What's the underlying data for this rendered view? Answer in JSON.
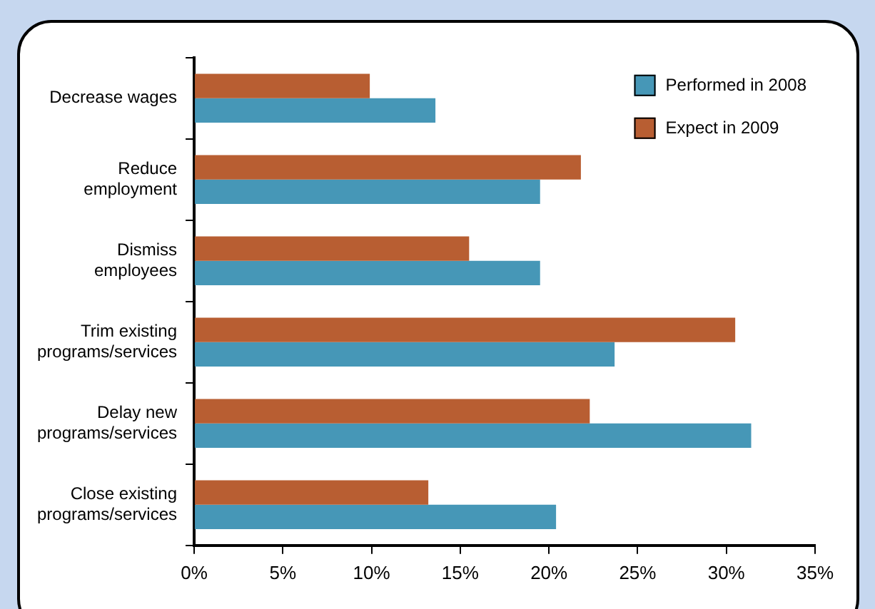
{
  "chart_data": {
    "type": "bar",
    "orientation": "horizontal",
    "categories": [
      "Decrease wages",
      "Reduce\nemployment",
      "Dismiss\nemployees",
      "Trim existing\nprograms/services",
      "Delay new\nprograms/services",
      "Close existing\nprograms/services"
    ],
    "series": [
      {
        "name": "Performed in 2008",
        "color": "#4697b7",
        "values": [
          13.6,
          19.5,
          19.5,
          23.7,
          31.4,
          20.4
        ]
      },
      {
        "name": "Expect in 2009",
        "color": "#b85e32",
        "values": [
          9.9,
          21.8,
          15.5,
          30.5,
          22.3,
          13.2
        ]
      }
    ],
    "xlim": [
      0,
      35
    ],
    "xticks": [
      {
        "value": 0,
        "label": "0%"
      },
      {
        "value": 5,
        "label": "5%"
      },
      {
        "value": 10,
        "label": "10%"
      },
      {
        "value": 15,
        "label": "15%"
      },
      {
        "value": 20,
        "label": "20%"
      },
      {
        "value": 25,
        "label": "25%"
      },
      {
        "value": 30,
        "label": "30%"
      },
      {
        "value": 35,
        "label": "35%"
      }
    ],
    "grid": false,
    "legend": "top right"
  }
}
